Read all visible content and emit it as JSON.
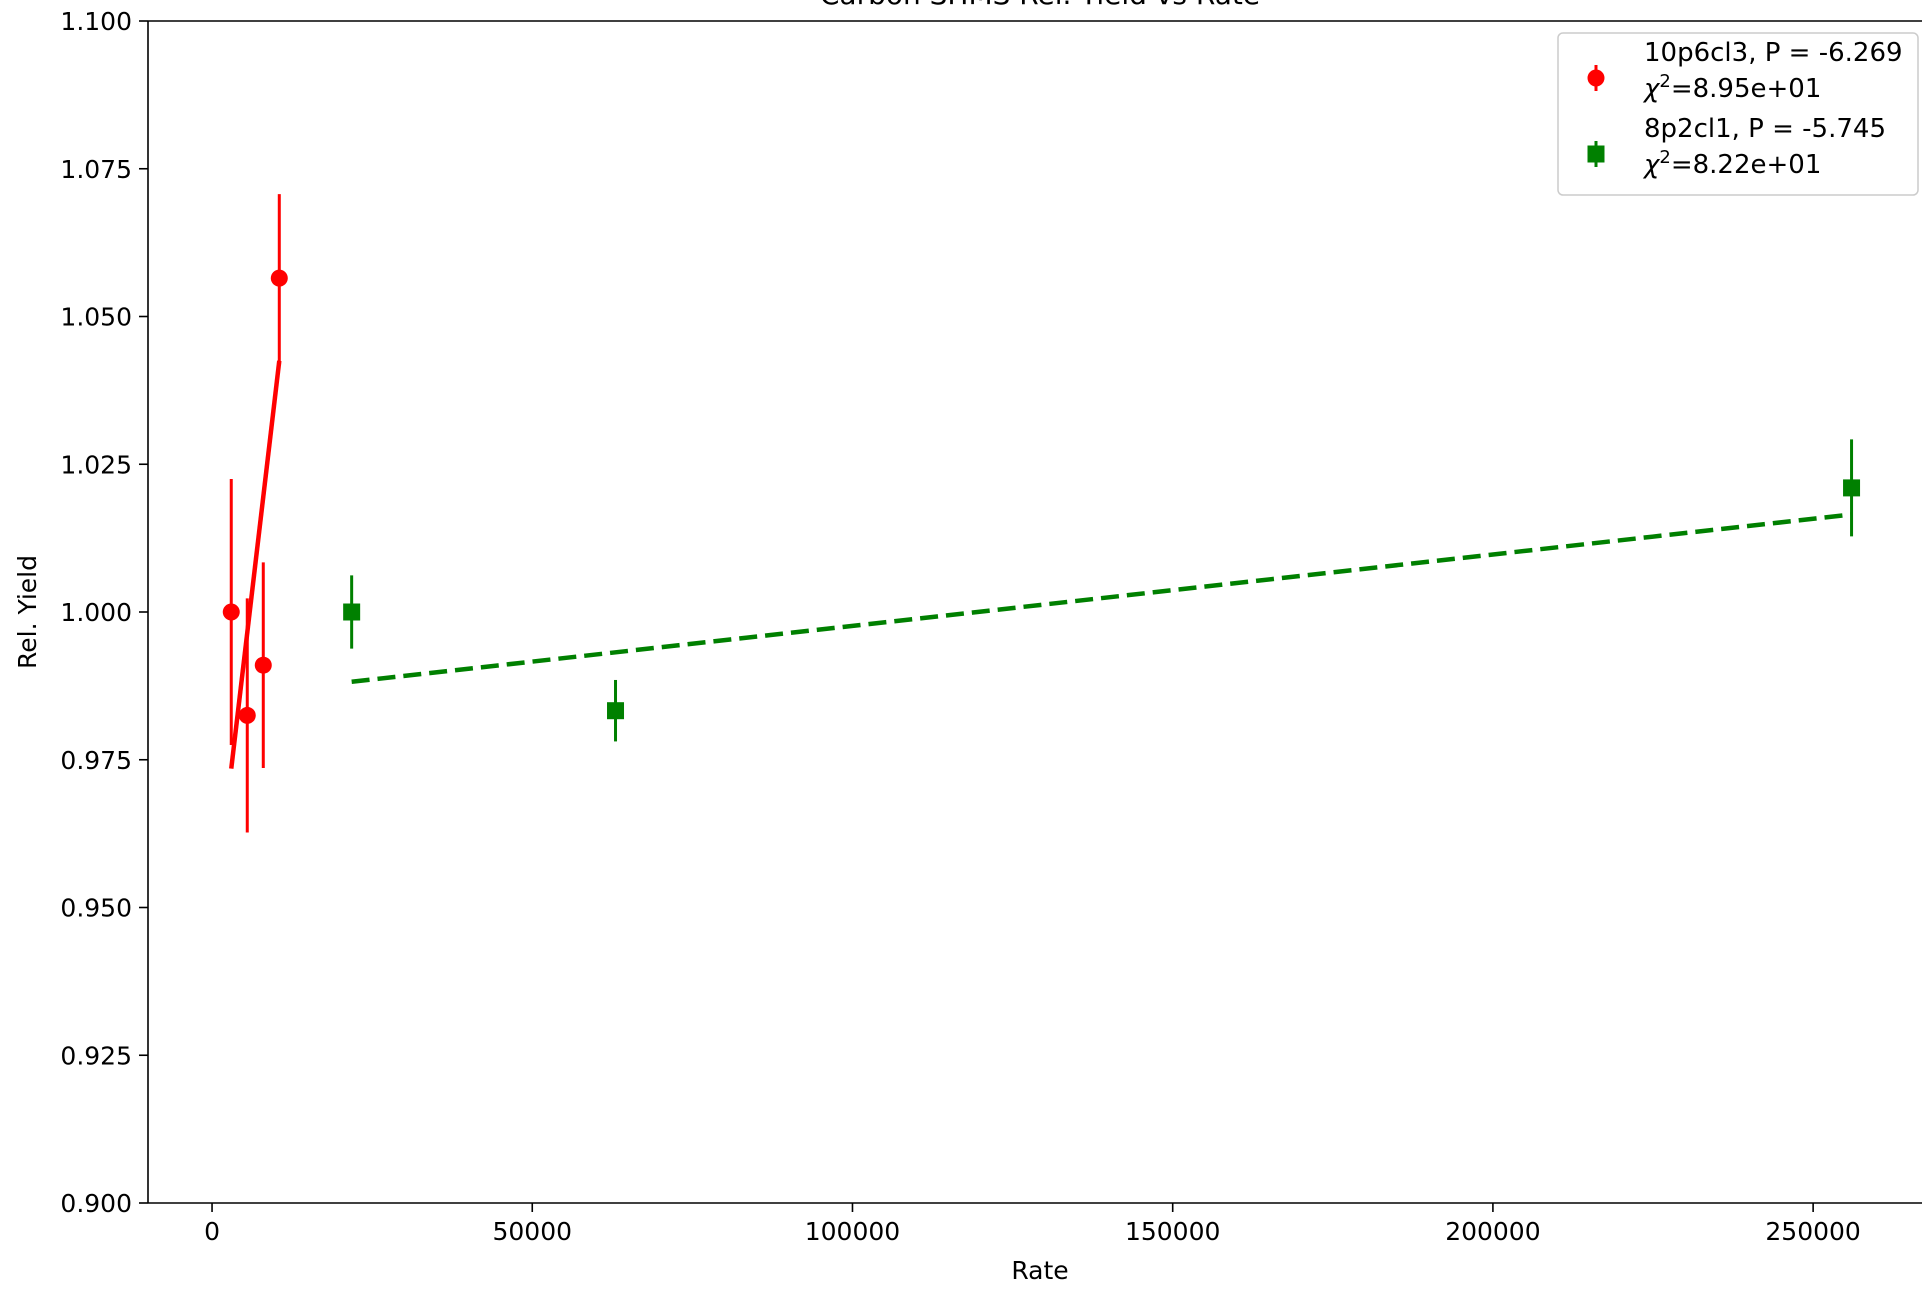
{
  "chart_data": {
    "type": "scatter",
    "title": "Carbon SHMS Rel. Yield vs Rate",
    "xlabel": "Rate",
    "ylabel": "Rel. Yield",
    "xlim": [
      -10000,
      267000
    ],
    "ylim": [
      0.9,
      1.1
    ],
    "x_ticks": [
      0,
      50000,
      100000,
      150000,
      200000,
      250000
    ],
    "y_ticks": [
      0.9,
      0.925,
      0.95,
      0.975,
      1.0,
      1.025,
      1.05,
      1.075,
      1.1
    ],
    "y_tick_labels": [
      "0.900",
      "0.925",
      "0.950",
      "0.975",
      "1.000",
      "1.025",
      "1.050",
      "1.075",
      "1.100"
    ],
    "grid": false,
    "legend_position": "top-right",
    "series": [
      {
        "name": "10p6cl3, P = -6.269",
        "chi2_label": "=8.95e+01",
        "marker": "circle",
        "color": "#ff0000",
        "line_style": "solid",
        "x": [
          3000,
          5500,
          8000,
          10500
        ],
        "y": [
          1.0,
          0.9825,
          0.991,
          1.0565
        ],
        "yerr": [
          0.0225,
          0.0198,
          0.0174,
          0.0142
        ],
        "fit": [
          [
            3000,
            0.9735
          ],
          [
            10500,
            1.0425
          ]
        ]
      },
      {
        "name": "8p2cl1, P = -5.745",
        "chi2_label": "=8.22e+01",
        "marker": "square",
        "color": "#008000",
        "line_style": "dashed",
        "x": [
          21800,
          63000,
          256000
        ],
        "y": [
          1.0,
          0.9833,
          1.021
        ],
        "yerr": [
          0.0062,
          0.0052,
          0.0082
        ],
        "fit": [
          [
            21800,
            0.9882
          ],
          [
            256000,
            1.0165
          ]
        ]
      }
    ]
  }
}
